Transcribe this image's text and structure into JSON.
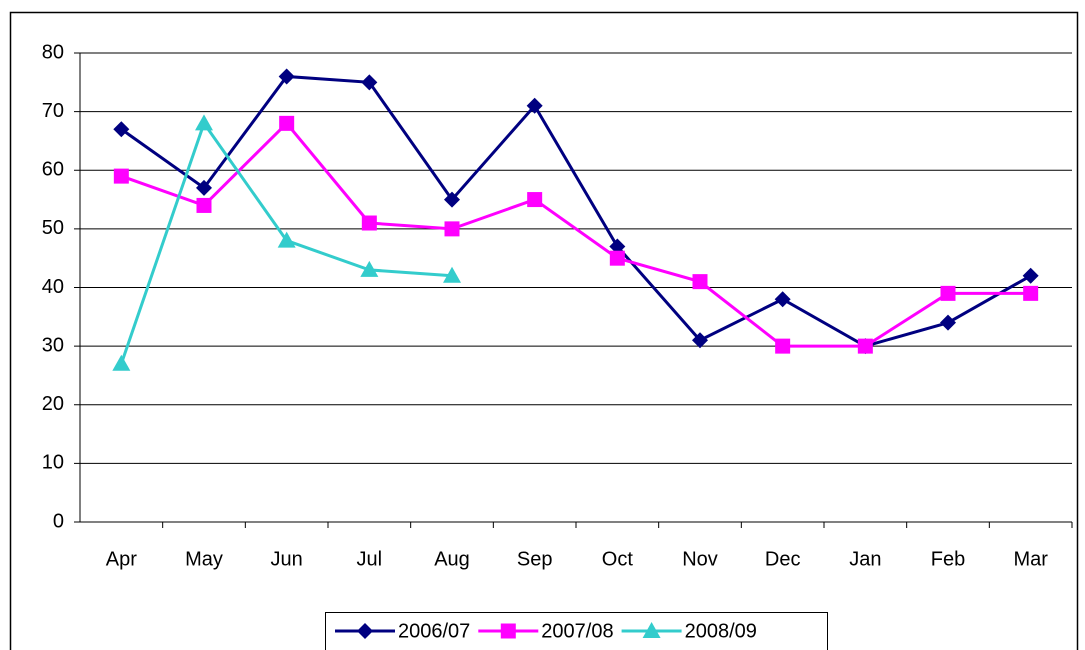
{
  "chart_data": {
    "type": "line",
    "categories": [
      "Apr",
      "May",
      "Jun",
      "Jul",
      "Aug",
      "Sep",
      "Oct",
      "Nov",
      "Dec",
      "Jan",
      "Feb",
      "Mar"
    ],
    "series": [
      {
        "name": "2006/07",
        "color": "#000080",
        "marker": "diamond",
        "values": [
          67,
          57,
          76,
          75,
          55,
          71,
          47,
          31,
          38,
          30,
          34,
          42
        ]
      },
      {
        "name": "2007/08",
        "color": "#ff00ff",
        "marker": "square",
        "values": [
          59,
          54,
          68,
          51,
          50,
          55,
          45,
          41,
          30,
          30,
          39,
          39
        ]
      },
      {
        "name": "2008/09",
        "color": "#33cccc",
        "marker": "triangle",
        "values": [
          27,
          68,
          48,
          43,
          42,
          null,
          null,
          null,
          null,
          null,
          null,
          null
        ]
      }
    ],
    "ylim": [
      0,
      80
    ],
    "yticks": [
      0,
      10,
      20,
      30,
      40,
      50,
      60,
      70,
      80
    ],
    "grid": true,
    "legend": "bottom"
  }
}
